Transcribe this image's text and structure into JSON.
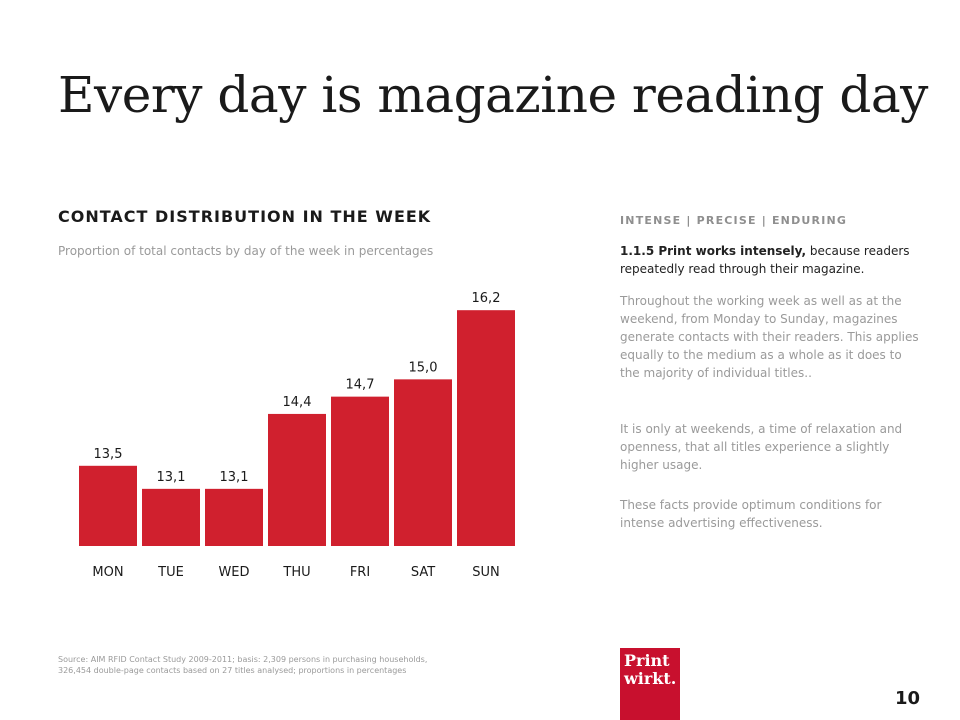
{
  "slide": {
    "title": "Every day is magazine reading day",
    "page_number": "10"
  },
  "chart_section": {
    "heading": "CONTACT DISTRIBUTION  IN THE WEEK",
    "subtitle": "Proportion of total contacts by day of the week in percentages",
    "source_line1": "Source: AIM RFID Contact Study 2009-2011; basis: 2,309 persons in purchasing households,",
    "source_line2": "326,454 double-page contacts based on 27 titles analysed; proportions in percentages"
  },
  "chart_data": {
    "type": "bar",
    "categories": [
      "MON",
      "TUE",
      "WED",
      "THU",
      "FRI",
      "SAT",
      "SUN"
    ],
    "values": [
      13.5,
      13.1,
      13.1,
      14.4,
      14.7,
      15.0,
      16.2
    ],
    "labels": [
      "13,5",
      "13,1",
      "13,1",
      "14,4",
      "14,7",
      "15,0",
      "16,2"
    ],
    "title": "CONTACT DISTRIBUTION  IN THE WEEK",
    "subtitle": "Proportion of total contacts by day of the week in percentages",
    "color": "#d0202e"
  },
  "side": {
    "tag": "INTENSE | PRECISE | ENDURING",
    "lead_bold": "1.1.5 Print works intensely,",
    "lead_rest": " because readers repeatedly read through their magazine.",
    "para1": "Throughout the working week as well as at the weekend, from Monday to Sunday, magazines generate contacts with their readers. This applies equally to the medium as a whole as it does to the majority of individual titles..",
    "para2": "It is only at weekends, a time of relaxation and openness, that all titles experience a slightly higher usage.",
    "para3": "These facts provide optimum conditions for intense advertising effectiveness."
  },
  "logo": {
    "line1": "Print",
    "line2": "wirkt.",
    "color": "#c8102e"
  }
}
